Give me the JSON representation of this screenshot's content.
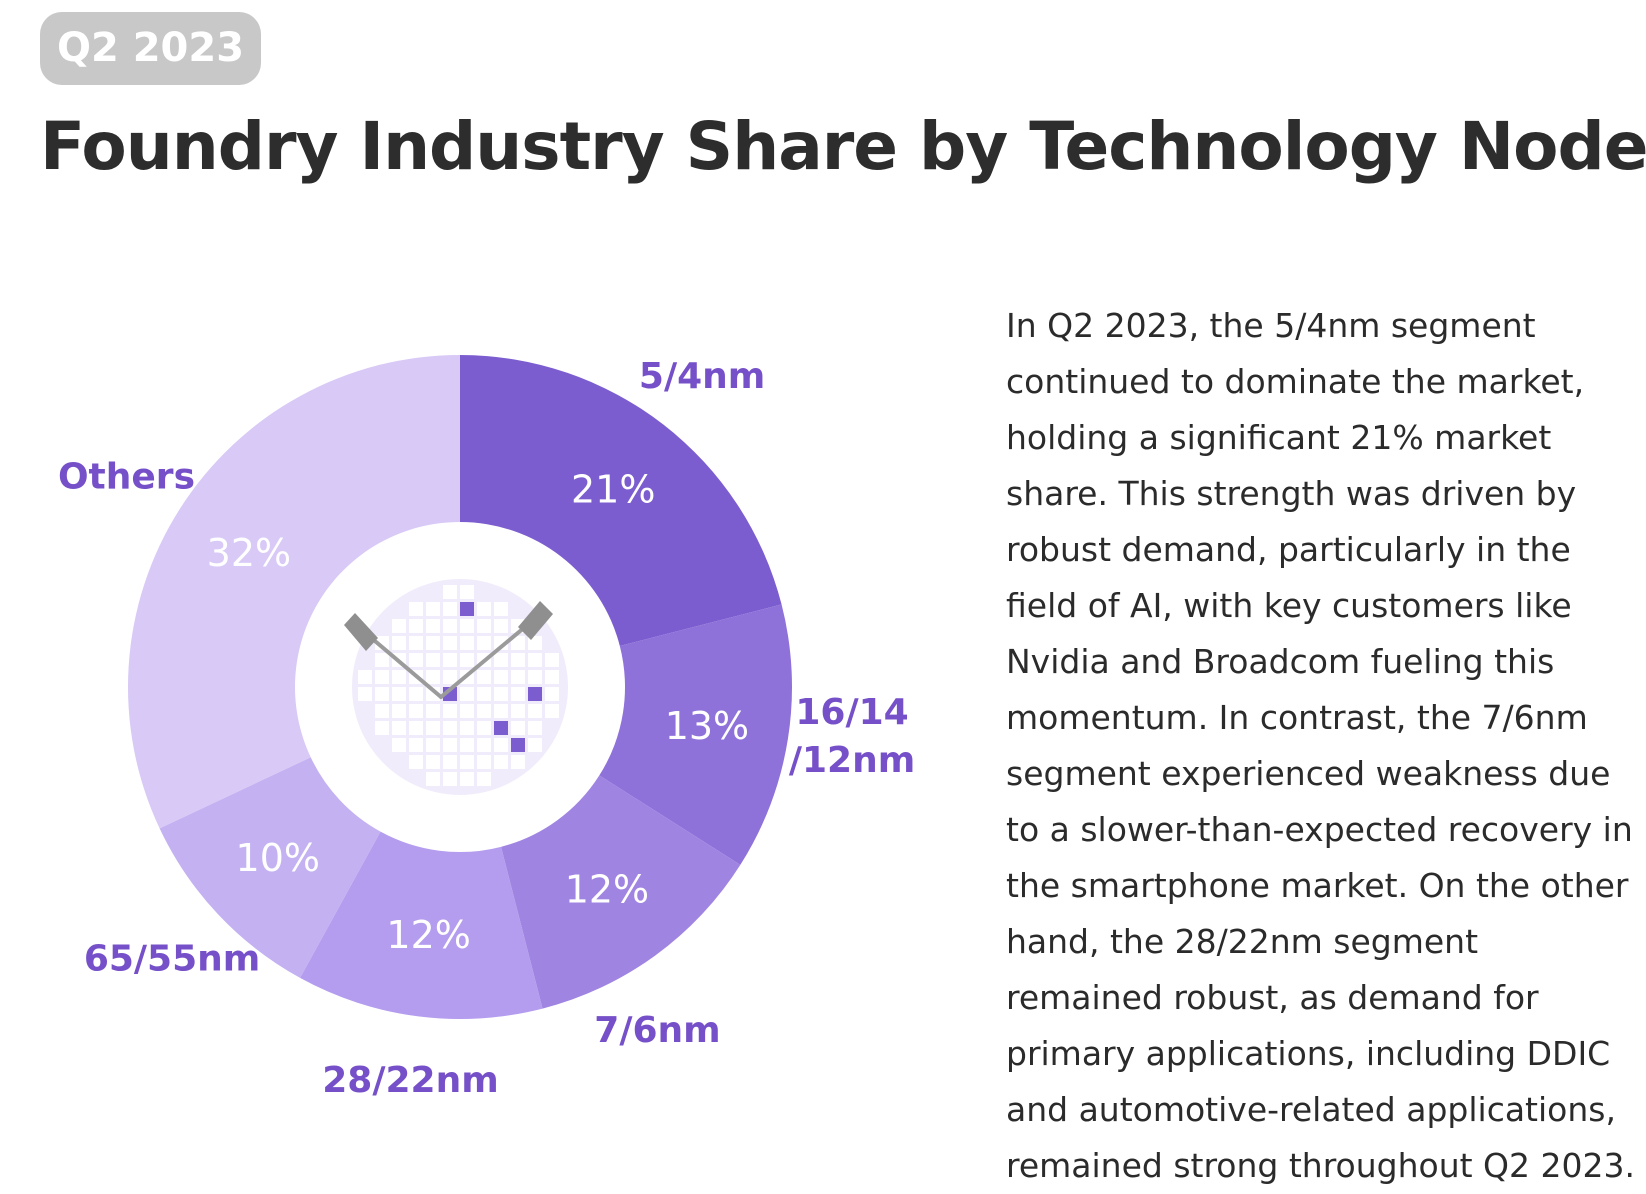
{
  "badge": "Q2 2023",
  "title": "Foundry Industry Share by Technology Node",
  "description": "In Q2 2023, the 5/4nm segment continued to dominate the market, holding a significant 21% market share. This strength was driven by robust demand, particularly in the field of AI, with key customers like Nvidia and Broadcom fueling this momentum. In contrast, the 7/6nm segment experienced weakness due to a slower-than-expected recovery in the smartphone market. On the other hand, the 28/22nm segment remained robust, as demand for primary applications, including DDIC and automotive-related applications, remained strong throughout Q2 2023.",
  "chart_data": {
    "type": "pie",
    "donut": true,
    "categories": [
      "5/4nm",
      "16/14\n/12nm",
      "7/6nm",
      "28/22nm",
      "65/55nm",
      "Others"
    ],
    "values": [
      21,
      13,
      12,
      12,
      10,
      32
    ],
    "value_labels": [
      "21%",
      "13%",
      "12%",
      "12%",
      "10%",
      "32%"
    ],
    "colors": [
      "#7c5dcf",
      "#8e72da",
      "#a084e2",
      "#b49cee",
      "#c4b1f2",
      "#d8c9f6"
    ],
    "label_color": "#7650c8",
    "center_icon": "wafer-with-probes-icon"
  }
}
